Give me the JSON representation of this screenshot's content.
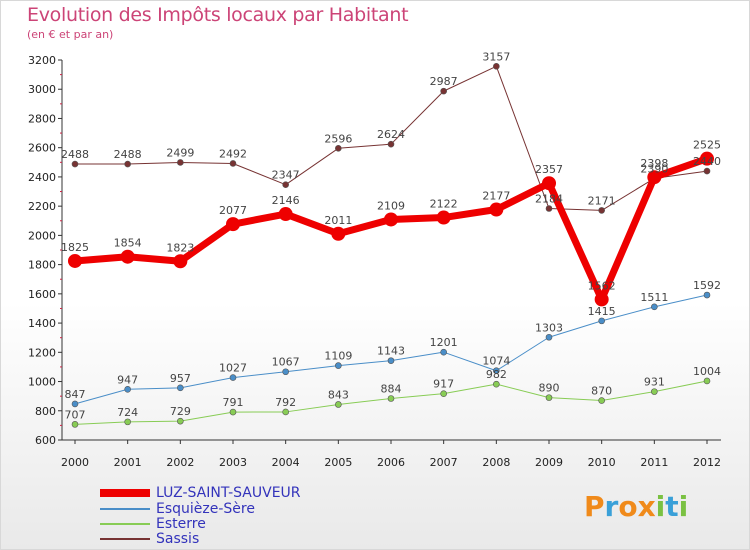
{
  "header": {
    "title": "Evolution des Impôts locaux par Habitant",
    "subtitle": "(en € et par an)"
  },
  "logo": {
    "text": "Proxiti",
    "colors": [
      "#f08a1a",
      "#3aa0d8",
      "#f08a1a",
      "#f08a1a",
      "#7ac142",
      "#3aa0d8",
      "#7ac142"
    ]
  },
  "chart_data": {
    "type": "line",
    "title": "Evolution des Impôts locaux par Habitant",
    "subtitle": "(en € et par an)",
    "xlabel": "",
    "ylabel": "",
    "x": [
      "2000",
      "2001",
      "2002",
      "2003",
      "2004",
      "2005",
      "2006",
      "2007",
      "2008",
      "2009",
      "2010",
      "2011",
      "2012"
    ],
    "ylim": [
      600,
      3200
    ],
    "yticks": [
      600,
      800,
      1000,
      1200,
      1400,
      1600,
      1800,
      2000,
      2200,
      2400,
      2600,
      2800,
      3000,
      3200
    ],
    "grid": false,
    "legend_position": "bottom-left",
    "series": [
      {
        "name": "LUZ-SAINT-SAUVEUR",
        "color": "#ee0000",
        "values": [
          1825,
          1854,
          1823,
          2077,
          2146,
          2011,
          2109,
          2122,
          2177,
          2357,
          1562,
          2398,
          2525
        ]
      },
      {
        "name": "Esquièze-Sère",
        "color": "#4a8ec8",
        "values": [
          847,
          947,
          957,
          1027,
          1067,
          1109,
          1143,
          1201,
          1074,
          1303,
          1415,
          1511,
          1592
        ]
      },
      {
        "name": "Esterre",
        "color": "#88cc55",
        "values": [
          707,
          724,
          729,
          791,
          792,
          843,
          884,
          917,
          982,
          890,
          870,
          931,
          1004
        ]
      },
      {
        "name": "Sassis",
        "color": "#773333",
        "values": [
          2488,
          2488,
          2499,
          2492,
          2347,
          2596,
          2624,
          2987,
          3157,
          2184,
          2171,
          2390,
          2440
        ]
      }
    ]
  }
}
